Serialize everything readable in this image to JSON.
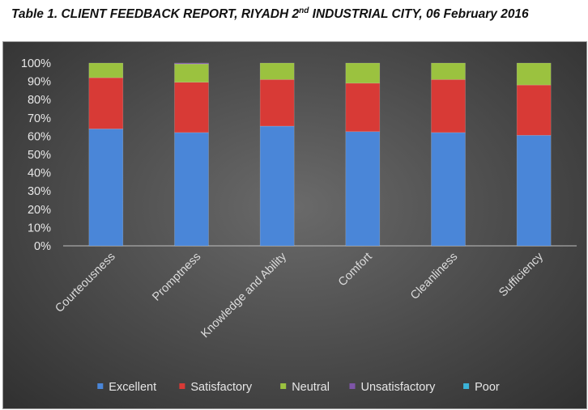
{
  "header": {
    "title_before": "Table 1. CLIENT FEEDBACK REPORT, RIYADH 2",
    "title_sup": "nd",
    "title_after": " INDUSTRIAL CITY, 06 February 2016"
  },
  "chart_data": {
    "type": "bar",
    "stacked": true,
    "percent": true,
    "categories": [
      "Courteousness",
      "Promptness",
      "Knowledge and Ability",
      "Comfort",
      "Cleanliness",
      "Sufficiency"
    ],
    "series": [
      {
        "name": "Excellent",
        "color": "#4a86d8",
        "values": [
          64,
          62,
          65.5,
          62.5,
          62,
          60.5
        ]
      },
      {
        "name": "Satisfactory",
        "color": "#d83a36",
        "values": [
          28,
          27.5,
          25.5,
          26.5,
          29,
          27.5
        ]
      },
      {
        "name": "Neutral",
        "color": "#9bc23f",
        "values": [
          8,
          10,
          9,
          11,
          9,
          12
        ]
      },
      {
        "name": "Unsatisfactory",
        "color": "#7e55a8",
        "values": [
          0,
          0.5,
          0,
          0,
          0,
          0
        ]
      },
      {
        "name": "Poor",
        "color": "#3bb3d8",
        "values": [
          0,
          0,
          0,
          0,
          0,
          0
        ]
      }
    ],
    "y_ticks": [
      "0%",
      "10%",
      "20%",
      "30%",
      "40%",
      "50%",
      "60%",
      "70%",
      "80%",
      "90%",
      "100%"
    ],
    "ylim": [
      0,
      100
    ],
    "grid": false,
    "legend_position": "bottom"
  }
}
